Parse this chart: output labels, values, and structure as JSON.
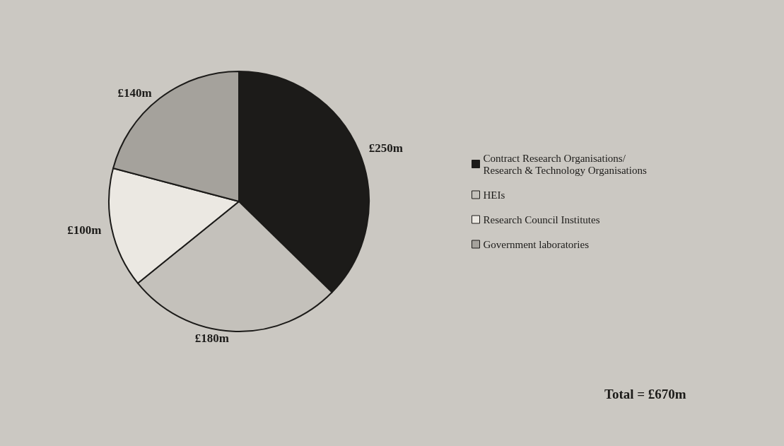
{
  "chart_data": {
    "type": "pie",
    "categories": [
      "Contract Research Organisations/ Research & Technology Organisations",
      "HEIs",
      "Research Council Institutes",
      "Government laboratories"
    ],
    "values": [
      250,
      180,
      100,
      140
    ],
    "value_labels": [
      "£250m",
      "£180m",
      "£100m",
      "£140m"
    ],
    "colors": [
      "#1c1b19",
      "#c4c1bb",
      "#ebe8e2",
      "#a5a29c"
    ],
    "legend": "right",
    "annotations": [
      "Total = £670m"
    ]
  }
}
